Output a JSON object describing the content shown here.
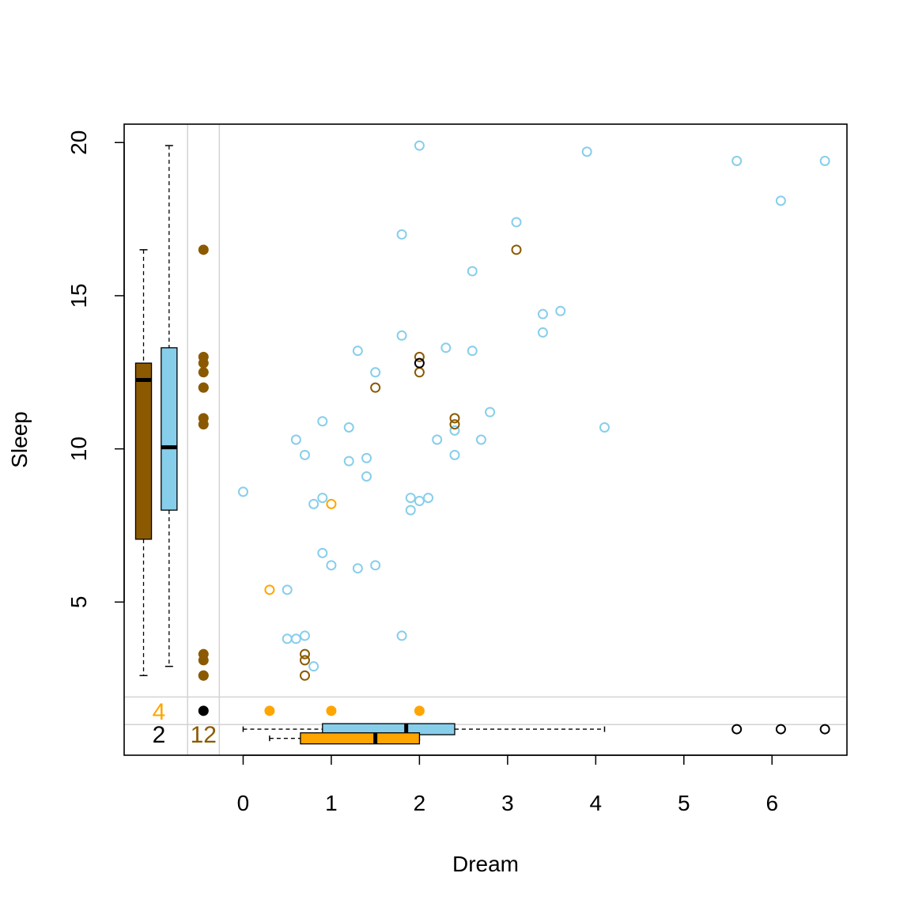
{
  "chart_data": {
    "type": "scatter",
    "title": "",
    "xlabel": "Dream",
    "ylabel": "Sleep",
    "xlim": [
      -1.35,
      6.85
    ],
    "ylim": [
      0.0,
      20.6
    ],
    "grid": false,
    "x_ticks": [
      0,
      1,
      2,
      3,
      4,
      5,
      6
    ],
    "x_tick_labels": [
      "0",
      "1",
      "2",
      "3",
      "4",
      "5",
      "6"
    ],
    "y_ticks": [
      5,
      10,
      15,
      20
    ],
    "y_tick_labels": [
      "5",
      "10",
      "15",
      "20"
    ],
    "colors": {
      "complete": "#87CEEB",
      "dream_missing": "#8B5A00",
      "sleep_missing": "#FFA500",
      "both_missing": "#000000",
      "guides": "#D3D3D3"
    },
    "series": [
      {
        "role": "complete",
        "points": [
          [
            2.0,
            19.9
          ],
          [
            3.9,
            19.7
          ],
          [
            5.6,
            19.4
          ],
          [
            6.6,
            19.4
          ],
          [
            6.1,
            18.1
          ],
          [
            1.8,
            17.0
          ],
          [
            3.1,
            17.4
          ],
          [
            2.6,
            15.8
          ],
          [
            3.4,
            14.4
          ],
          [
            3.6,
            14.5
          ],
          [
            3.4,
            13.8
          ],
          [
            1.8,
            13.7
          ],
          [
            2.3,
            13.3
          ],
          [
            1.3,
            13.2
          ],
          [
            2.6,
            13.2
          ],
          [
            1.5,
            12.5
          ],
          [
            2.8,
            11.2
          ],
          [
            0.9,
            10.9
          ],
          [
            1.2,
            10.7
          ],
          [
            2.4,
            10.6
          ],
          [
            4.1,
            10.7
          ],
          [
            0.6,
            10.3
          ],
          [
            2.2,
            10.3
          ],
          [
            2.7,
            10.3
          ],
          [
            0.7,
            9.8
          ],
          [
            1.4,
            9.7
          ],
          [
            2.4,
            9.8
          ],
          [
            1.2,
            9.6
          ],
          [
            1.4,
            9.1
          ],
          [
            0.0,
            8.6
          ],
          [
            0.9,
            8.4
          ],
          [
            1.9,
            8.4
          ],
          [
            2.1,
            8.4
          ],
          [
            0.8,
            8.2
          ],
          [
            2.0,
            8.3
          ],
          [
            1.9,
            8.0
          ],
          [
            0.9,
            6.6
          ],
          [
            1.0,
            6.2
          ],
          [
            1.5,
            6.2
          ],
          [
            1.3,
            6.1
          ],
          [
            0.5,
            5.4
          ],
          [
            1.8,
            3.9
          ],
          [
            0.7,
            3.9
          ],
          [
            0.5,
            3.8
          ],
          [
            0.6,
            3.8
          ],
          [
            0.8,
            2.9
          ]
        ]
      },
      {
        "role": "sleep_missing_reference",
        "points": [
          [
            0.3,
            5.4
          ],
          [
            1.0,
            8.2
          ]
        ]
      },
      {
        "role": "dream_missing_reference",
        "points": [
          [
            3.1,
            16.5
          ],
          [
            2.0,
            13.0
          ],
          [
            2.0,
            12.5
          ],
          [
            1.5,
            12.0
          ],
          [
            2.4,
            11.0
          ],
          [
            2.4,
            10.8
          ],
          [
            0.7,
            3.3
          ],
          [
            0.7,
            3.1
          ],
          [
            0.7,
            2.6
          ]
        ]
      },
      {
        "role": "both_missing_reference",
        "points": [
          [
            2.0,
            12.8
          ]
        ]
      }
    ],
    "dream_missing_sleep_values": [
      16.5,
      13.0,
      12.8,
      12.5,
      12.0,
      12.0,
      11.0,
      10.8,
      3.3,
      3.1,
      2.6,
      2.6
    ],
    "sleep_missing_dream_values": [
      0.3,
      1.0,
      2.0
    ],
    "both_missing_marker": 1,
    "counts": {
      "sleep_missing": "4",
      "both_missing": "2",
      "dream_missing": "12"
    },
    "boxplots": {
      "sleep_when_dream_missing": {
        "min": 2.6,
        "q1": 7.05,
        "median": 12.25,
        "q3": 12.8,
        "max": 16.5
      },
      "sleep_when_dream_observed": {
        "min": 2.9,
        "q1": 8.0,
        "median": 10.05,
        "q3": 13.3,
        "max": 19.9
      },
      "dream_when_sleep_observed": {
        "min": 0.0,
        "q1": 0.9,
        "median": 1.85,
        "q3": 2.4,
        "max": 4.1,
        "outliers": [
          5.6,
          6.1,
          6.6
        ]
      },
      "dream_when_sleep_missing": {
        "min": 0.3,
        "q1": 0.65,
        "median": 1.5,
        "q3": 2.0,
        "max": 2.0
      }
    }
  }
}
